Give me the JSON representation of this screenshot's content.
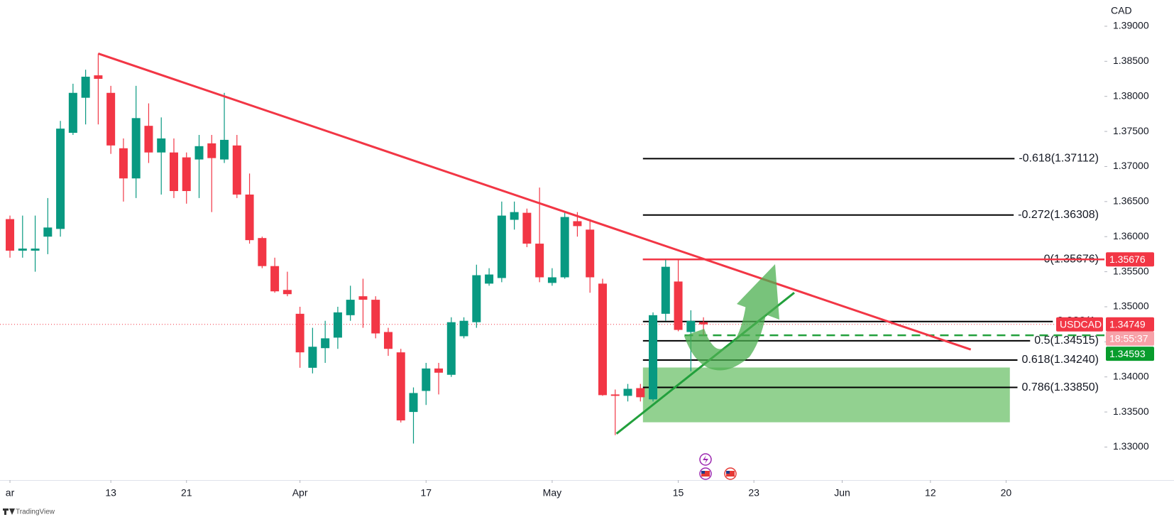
{
  "chart_data": {
    "type": "candlestick",
    "symbol": "USDCAD",
    "y_axis_label": "CAD",
    "watermark": "TradingView",
    "up_color": "#089981",
    "down_color": "#f23645",
    "x": [
      0,
      1,
      2,
      3,
      4,
      5,
      6,
      7,
      8,
      9,
      10,
      11,
      12,
      13,
      14,
      15,
      16,
      17,
      18,
      19,
      20,
      21,
      22,
      23,
      24,
      25,
      26,
      27,
      28,
      29,
      30,
      31,
      32,
      33,
      34,
      35,
      36,
      37,
      38,
      39,
      40,
      41,
      42,
      43,
      44,
      45,
      46,
      47,
      48,
      49,
      50,
      51,
      52,
      53,
      54,
      55
    ],
    "open": [
      1.3625,
      1.358,
      1.358,
      1.36,
      1.3611,
      1.3748,
      1.3798,
      1.383,
      1.3805,
      1.3726,
      1.3683,
      1.3758,
      1.372,
      1.372,
      1.3713,
      1.371,
      1.3733,
      1.371,
      1.373,
      1.366,
      1.3598,
      1.3558,
      1.3524,
      1.349,
      1.3413,
      1.3441,
      1.3456,
      1.3488,
      1.3515,
      1.351,
      1.3464,
      1.3435,
      1.335,
      1.338,
      1.3412,
      1.3403,
      1.3458,
      1.3478,
      1.3533,
      1.3541,
      1.3624,
      1.3634,
      1.359,
      1.3534,
      1.3542,
      1.3622,
      1.361,
      1.3533,
      1.3375,
      1.3373,
      1.3384,
      1.3368,
      1.349,
      1.3536,
      1.3464,
      1.3478
    ],
    "high": [
      1.363,
      1.363,
      1.363,
      1.3655,
      1.3765,
      1.3818,
      1.3838,
      1.3861,
      1.3815,
      1.374,
      1.3815,
      1.379,
      1.377,
      1.374,
      1.372,
      1.3745,
      1.3745,
      1.3805,
      1.3745,
      1.369,
      1.36,
      1.357,
      1.355,
      1.35,
      1.347,
      1.348,
      1.35,
      1.353,
      1.354,
      1.3515,
      1.347,
      1.344,
      1.3385,
      1.342,
      1.342,
      1.3485,
      1.3485,
      1.356,
      1.3555,
      1.365,
      1.365,
      1.364,
      1.367,
      1.3555,
      1.3635,
      1.3635,
      1.3625,
      1.354,
      1.3382,
      1.339,
      1.339,
      1.3492,
      1.3567,
      1.3568,
      1.3495,
      1.3485
    ],
    "low": [
      1.357,
      1.357,
      1.355,
      1.3575,
      1.36,
      1.3745,
      1.376,
      1.376,
      1.3718,
      1.365,
      1.3655,
      1.3705,
      1.366,
      1.3655,
      1.3647,
      1.3655,
      1.3635,
      1.3705,
      1.3655,
      1.359,
      1.3555,
      1.352,
      1.3515,
      1.3413,
      1.3405,
      1.342,
      1.344,
      1.348,
      1.347,
      1.3455,
      1.343,
      1.3335,
      1.3305,
      1.336,
      1.3375,
      1.34,
      1.3455,
      1.347,
      1.353,
      1.3535,
      1.361,
      1.3585,
      1.3535,
      1.353,
      1.354,
      1.36,
      1.352,
      1.3373,
      1.3317,
      1.3365,
      1.3365,
      1.3365,
      1.348,
      1.3465,
      1.3408,
      1.3459
    ],
    "close": [
      1.358,
      1.3583,
      1.3583,
      1.3613,
      1.3754,
      1.3805,
      1.3828,
      1.3825,
      1.373,
      1.3683,
      1.3769,
      1.372,
      1.374,
      1.3665,
      1.3665,
      1.3729,
      1.3712,
      1.3738,
      1.366,
      1.3595,
      1.3558,
      1.3522,
      1.3518,
      1.3435,
      1.3443,
      1.3455,
      1.3492,
      1.351,
      1.351,
      1.3462,
      1.344,
      1.3338,
      1.3377,
      1.3412,
      1.3406,
      1.3478,
      1.348,
      1.3545,
      1.3546,
      1.363,
      1.3635,
      1.359,
      1.3542,
      1.3542,
      1.3628,
      1.3615,
      1.3542,
      1.3374,
      1.3373,
      1.3383,
      1.3371,
      1.3488,
      1.3557,
      1.3467,
      1.348,
      1.34749
    ],
    "xlim": [
      -0.79,
      86.8
    ],
    "xticks": [
      {
        "value": 0,
        "label": "ar"
      },
      {
        "value": 8,
        "label": "13"
      },
      {
        "value": 14,
        "label": "21"
      },
      {
        "value": 23,
        "label": "Apr"
      },
      {
        "value": 33,
        "label": "17"
      },
      {
        "value": 43,
        "label": "May"
      },
      {
        "value": 53,
        "label": "15"
      },
      {
        "value": 59,
        "label": "23"
      },
      {
        "value": 66,
        "label": "Jun"
      },
      {
        "value": 73,
        "label": "12"
      },
      {
        "value": 79,
        "label": "20"
      }
    ],
    "ylim": [
      1.32529,
      1.39374
    ],
    "yticks": [
      {
        "value": 1.33,
        "label": "1.33000"
      },
      {
        "value": 1.335,
        "label": "1.33500"
      },
      {
        "value": 1.34,
        "label": "1.34000"
      },
      {
        "value": 1.345,
        "label": "1.34500"
      },
      {
        "value": 1.35,
        "label": "1.35000"
      },
      {
        "value": 1.355,
        "label": "1.35500"
      },
      {
        "value": 1.36,
        "label": "1.36000"
      },
      {
        "value": 1.365,
        "label": "1.36500"
      },
      {
        "value": 1.37,
        "label": "1.37000"
      },
      {
        "value": 1.375,
        "label": "1.37500"
      },
      {
        "value": 1.38,
        "label": "1.38000"
      },
      {
        "value": 1.385,
        "label": "1.38500"
      },
      {
        "value": 1.39,
        "label": "1.39000"
      }
    ],
    "last_price": 1.34749,
    "countdown": "18:55:37",
    "fib_levels": [
      {
        "label": "-0.618(1.37112)",
        "value": 1.37112
      },
      {
        "label": "-0.272(1.36308)",
        "value": 1.36308
      },
      {
        "label": "0(1.35676)",
        "value": 1.35676
      },
      {
        "label": "0.382(1.",
        "value": 1.34789
      },
      {
        "label": "0.5(1.34515)",
        "value": 1.34515
      },
      {
        "label": "0.618(1.34240)",
        "value": 1.3424
      },
      {
        "label": "0.786(1.33850)",
        "value": 1.3385
      }
    ],
    "fib_x_start": 50.2,
    "trendlines": [
      {
        "color": "#f23645",
        "x": [
          7,
          76.2
        ],
        "y": [
          1.3861,
          1.3439
        ]
      },
      {
        "color": "#22a03c",
        "x": [
          48.1,
          62.2
        ],
        "y": [
          1.3319,
          1.352
        ]
      }
    ],
    "resistance": {
      "value": 1.35676,
      "x_start": 50.2,
      "color": "#f23645"
    },
    "support": {
      "value": 1.34593,
      "x_start": 53.5,
      "color": "#22a03c"
    },
    "zone": {
      "x": [
        50.2,
        79.3
      ],
      "y": [
        1.33353,
        1.34134
      ],
      "color": "#8ccf8a"
    }
  }
}
